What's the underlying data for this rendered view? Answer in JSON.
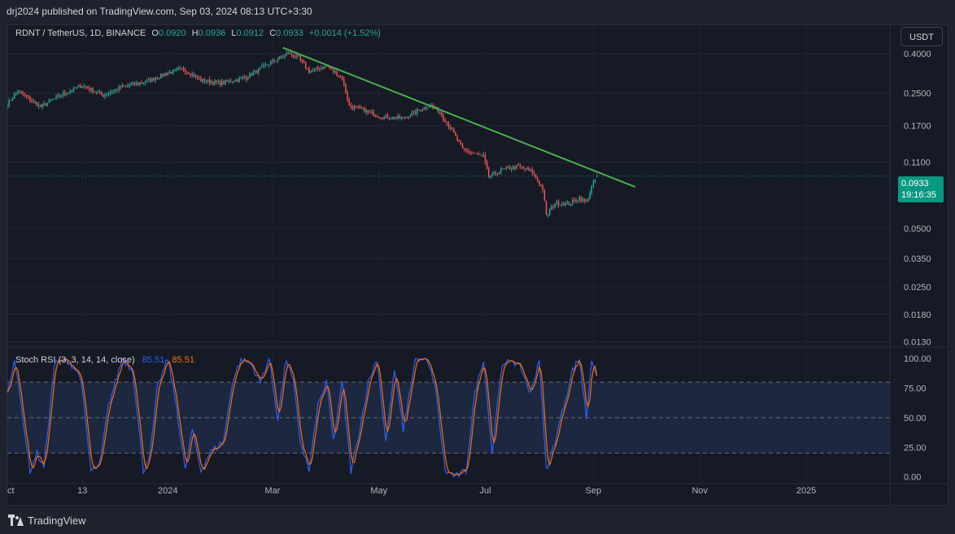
{
  "header": {
    "publisher_line": "drj2024 published on TradingView.com, Sep 03, 2024 08:13 UTC+3:30"
  },
  "legend": {
    "symbol": "RDNT / TetherUS, 1D, BINANCE",
    "o_label": "O",
    "o_value": "0.0920",
    "h_label": "H",
    "h_value": "0.0936",
    "l_label": "L",
    "l_value": "0.0912",
    "c_label": "C",
    "c_value": "0.0933",
    "change": "+0.0014 (+1.52%)"
  },
  "currency_button": "USDT",
  "price_tag": {
    "price": "0.0933",
    "countdown": "19:16:35"
  },
  "stoch_legend": {
    "name": "Stoch RSI (3, 3, 14, 14, close)",
    "k_value": "85.51",
    "d_value": "85.51"
  },
  "footer": {
    "brand": "TradingView"
  },
  "colors": {
    "up": "#26a69a",
    "down": "#ef5350",
    "trendline": "#4caf50",
    "k_line": "#2962ff",
    "d_line": "#ff6d00",
    "band_fill": "#1e2a44"
  },
  "chart_data": [
    {
      "type": "candlestick",
      "symbol": "RDNT / TetherUS",
      "y_scale": "log",
      "y_ticks": [
        "0.4000",
        "0.2500",
        "0.1700",
        "0.1100",
        "0.0500",
        "0.0350",
        "0.0250",
        "0.0180",
        "0.0130"
      ],
      "x_ticks": [
        "Oct",
        "13",
        "2024",
        "Mar",
        "May",
        "Jul",
        "Sep",
        "Nov",
        "2025"
      ],
      "x_range": [
        "2023-10-01",
        "2025-02-18"
      ],
      "y_range": [
        0.0122,
        0.52
      ],
      "last_close": 0.0933,
      "close_anchors": [
        [
          "2023-10-01",
          0.22
        ],
        [
          "2023-10-07",
          0.258
        ],
        [
          "2023-10-20",
          0.213
        ],
        [
          "2023-11-01",
          0.245
        ],
        [
          "2023-11-13",
          0.275
        ],
        [
          "2023-11-25",
          0.244
        ],
        [
          "2023-12-05",
          0.268
        ],
        [
          "2023-12-20",
          0.288
        ],
        [
          "2024-01-01",
          0.318
        ],
        [
          "2024-01-10",
          0.335
        ],
        [
          "2024-01-20",
          0.292
        ],
        [
          "2024-02-01",
          0.282
        ],
        [
          "2024-02-15",
          0.302
        ],
        [
          "2024-02-28",
          0.356
        ],
        [
          "2024-03-10",
          0.402
        ],
        [
          "2024-03-16",
          0.38
        ],
        [
          "2024-03-22",
          0.325
        ],
        [
          "2024-04-01",
          0.345
        ],
        [
          "2024-04-10",
          0.3
        ],
        [
          "2024-04-14",
          0.215
        ],
        [
          "2024-04-22",
          0.205
        ],
        [
          "2024-05-01",
          0.19
        ],
        [
          "2024-05-15",
          0.185
        ],
        [
          "2024-05-30",
          0.218
        ],
        [
          "2024-06-05",
          0.2
        ],
        [
          "2024-06-12",
          0.16
        ],
        [
          "2024-06-18",
          0.128
        ],
        [
          "2024-06-30",
          0.118
        ],
        [
          "2024-07-03",
          0.092
        ],
        [
          "2024-07-10",
          0.1
        ],
        [
          "2024-07-20",
          0.105
        ],
        [
          "2024-07-28",
          0.098
        ],
        [
          "2024-08-03",
          0.08
        ],
        [
          "2024-08-05",
          0.058
        ],
        [
          "2024-08-10",
          0.068
        ],
        [
          "2024-08-18",
          0.067
        ],
        [
          "2024-08-24",
          0.072
        ],
        [
          "2024-08-28",
          0.068
        ],
        [
          "2024-08-31",
          0.082
        ],
        [
          "2024-09-03",
          0.0933
        ]
      ],
      "trendline": {
        "start": [
          "2024-03-07",
          0.43
        ],
        "end": [
          "2024-09-25",
          0.082
        ]
      }
    },
    {
      "type": "line",
      "title": "Stoch RSI (3, 3, 14, 14, close)",
      "y_ticks": [
        "100.00",
        "75.00",
        "50.00",
        "25.00",
        "0.00"
      ],
      "y_range": [
        -3,
        107
      ],
      "bands": {
        "upper": 80,
        "middle": 50,
        "lower": 20
      },
      "series": [
        {
          "name": "K",
          "last": 85.51
        },
        {
          "name": "D",
          "last": 85.51
        }
      ],
      "k_anchors": [
        [
          "2023-10-01",
          70
        ],
        [
          "2023-10-05",
          100
        ],
        [
          "2023-10-09",
          60
        ],
        [
          "2023-10-14",
          5
        ],
        [
          "2023-10-18",
          20
        ],
        [
          "2023-10-22",
          8
        ],
        [
          "2023-10-28",
          95
        ],
        [
          "2023-11-04",
          100
        ],
        [
          "2023-11-12",
          85
        ],
        [
          "2023-11-18",
          5
        ],
        [
          "2023-11-23",
          10
        ],
        [
          "2023-11-28",
          60
        ],
        [
          "2023-12-02",
          80
        ],
        [
          "2023-12-06",
          100
        ],
        [
          "2023-12-12",
          90
        ],
        [
          "2023-12-18",
          5
        ],
        [
          "2023-12-22",
          20
        ],
        [
          "2023-12-26",
          75
        ],
        [
          "2024-01-01",
          100
        ],
        [
          "2024-01-06",
          60
        ],
        [
          "2024-01-11",
          5
        ],
        [
          "2024-01-15",
          40
        ],
        [
          "2024-01-20",
          5
        ],
        [
          "2024-01-25",
          20
        ],
        [
          "2024-02-02",
          30
        ],
        [
          "2024-02-07",
          80
        ],
        [
          "2024-02-12",
          100
        ],
        [
          "2024-02-18",
          95
        ],
        [
          "2024-02-23",
          80
        ],
        [
          "2024-02-28",
          100
        ],
        [
          "2024-03-04",
          50
        ],
        [
          "2024-03-09",
          100
        ],
        [
          "2024-03-13",
          80
        ],
        [
          "2024-03-17",
          30
        ],
        [
          "2024-03-22",
          5
        ],
        [
          "2024-03-27",
          60
        ],
        [
          "2024-04-01",
          80
        ],
        [
          "2024-04-05",
          30
        ],
        [
          "2024-04-10",
          80
        ],
        [
          "2024-04-15",
          5
        ],
        [
          "2024-04-20",
          40
        ],
        [
          "2024-04-25",
          80
        ],
        [
          "2024-04-30",
          100
        ],
        [
          "2024-05-05",
          30
        ],
        [
          "2024-05-10",
          90
        ],
        [
          "2024-05-15",
          40
        ],
        [
          "2024-05-22",
          100
        ],
        [
          "2024-05-28",
          100
        ],
        [
          "2024-06-02",
          80
        ],
        [
          "2024-06-08",
          5
        ],
        [
          "2024-06-14",
          0
        ],
        [
          "2024-06-20",
          5
        ],
        [
          "2024-06-25",
          70
        ],
        [
          "2024-06-30",
          100
        ],
        [
          "2024-07-05",
          20
        ],
        [
          "2024-07-10",
          90
        ],
        [
          "2024-07-16",
          100
        ],
        [
          "2024-07-22",
          90
        ],
        [
          "2024-07-27",
          70
        ],
        [
          "2024-08-01",
          100
        ],
        [
          "2024-08-05",
          5
        ],
        [
          "2024-08-10",
          30
        ],
        [
          "2024-08-15",
          60
        ],
        [
          "2024-08-20",
          90
        ],
        [
          "2024-08-24",
          100
        ],
        [
          "2024-08-28",
          50
        ],
        [
          "2024-08-31",
          100
        ],
        [
          "2024-09-03",
          85.51
        ]
      ]
    }
  ]
}
